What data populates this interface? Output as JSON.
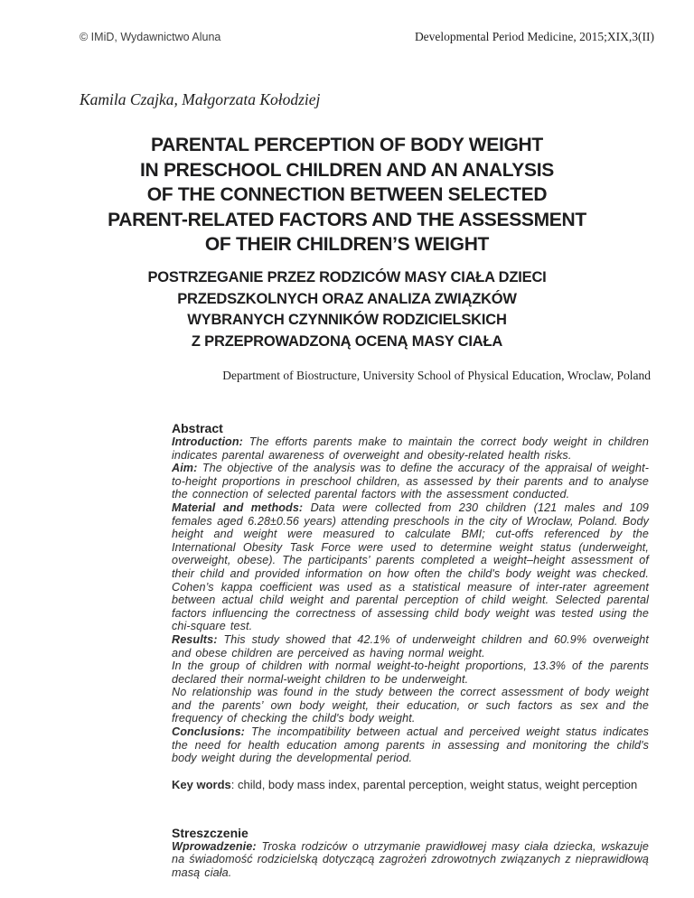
{
  "header": {
    "copyright": "© IMiD, Wydawnictwo Aluna",
    "journal": "Developmental Period Medicine, 2015;XIX,3(II)"
  },
  "authors": "Kamila Czajka, Małgorzata Kołodziej",
  "title_en": {
    "line1": "PARENTAL PERCEPTION OF BODY WEIGHT",
    "line2": "IN PRESCHOOL CHILDREN AND AN ANALYSIS",
    "line3": "OF THE CONNECTION BETWEEN SELECTED",
    "line4": "PARENT-RELATED FACTORS AND THE ASSESSMENT",
    "line5": "OF THEIR CHILDREN’S WEIGHT"
  },
  "title_pl": {
    "line1": "POSTRZEGANIE PRZEZ RODZICÓW MASY CIAŁA DZIECI",
    "line2": "PRZEDSZKOLNYCH ORAZ ANALIZA ZWIĄZKÓW",
    "line3": "WYBRANYCH CZYNNIKÓW RODZICIELSKICH",
    "line4": "Z PRZEPROWADZONĄ OCENĄ MASY CIAŁA"
  },
  "affiliation": "Department of Biostructure, University School of Physical Education, Wroclaw, Poland",
  "abstract": {
    "heading": "Abstract",
    "paragraphs": [
      {
        "label": "Introduction:",
        "text": "The efforts parents make to maintain the correct body weight in children indicates parental awareness of overweight and obesity-related health risks."
      },
      {
        "label": "Aim:",
        "text": "The objective of the analysis was to define the accuracy of the appraisal of weight-to-height proportions in preschool children, as assessed by their parents and to analyse the connection of selected parental factors with the assessment conducted."
      },
      {
        "label": "Material and methods:",
        "text": "Data were collected from 230 children (121 males and 109 females aged 6.28±0.56 years) attending preschools in the city of Wrocław, Poland. Body height and weight were measured to calculate BMI; cut-offs referenced by the International Obesity Task Force were used to determine weight status (underweight, overweight, obese). The participants’ parents completed a weight–height assessment of their child and provided information on how often the child's body weight was checked. Cohen’s kappa  coefficient was used as a statistical measure of inter-rater agreement between actual child weight and parental perception of child weight. Selected parental factors influencing the correctness of assessing child body weight was tested using the chi-square test."
      },
      {
        "label": "Results:",
        "text": "This study showed that 42.1% of underweight children and 60.9% overweight and obese children are perceived as having normal weight."
      },
      {
        "label": "",
        "text": "In the group of children with normal weight-to-height proportions, 13.3% of the parents declared their normal-weight children to be underweight."
      },
      {
        "label": "",
        "text": "No relationship was found in the study between the correct assessment of body weight and the parents’ own body weight, their education, or such factors as sex and the frequency of checking the child's body weight."
      },
      {
        "label": "Conclusions:",
        "text": "The incompatibility between actual and perceived weight status indicates the need for health education among parents in assessing and monitoring the child's body weight during the developmental period."
      }
    ],
    "keywords_label": "Key words",
    "keywords_text": ": child, body mass index, parental perception, weight status, weight perception"
  },
  "streszczenie": {
    "heading": "Streszczenie",
    "paragraphs": [
      {
        "label": "Wprowadzenie:",
        "text": "Troska rodziców o utrzymanie prawidłowej masy ciała dziecka, wskazuje na świadomość rodzicielską dotyczącą zagrożeń zdrowotnych związanych z nieprawidłową masą ciała."
      }
    ]
  }
}
